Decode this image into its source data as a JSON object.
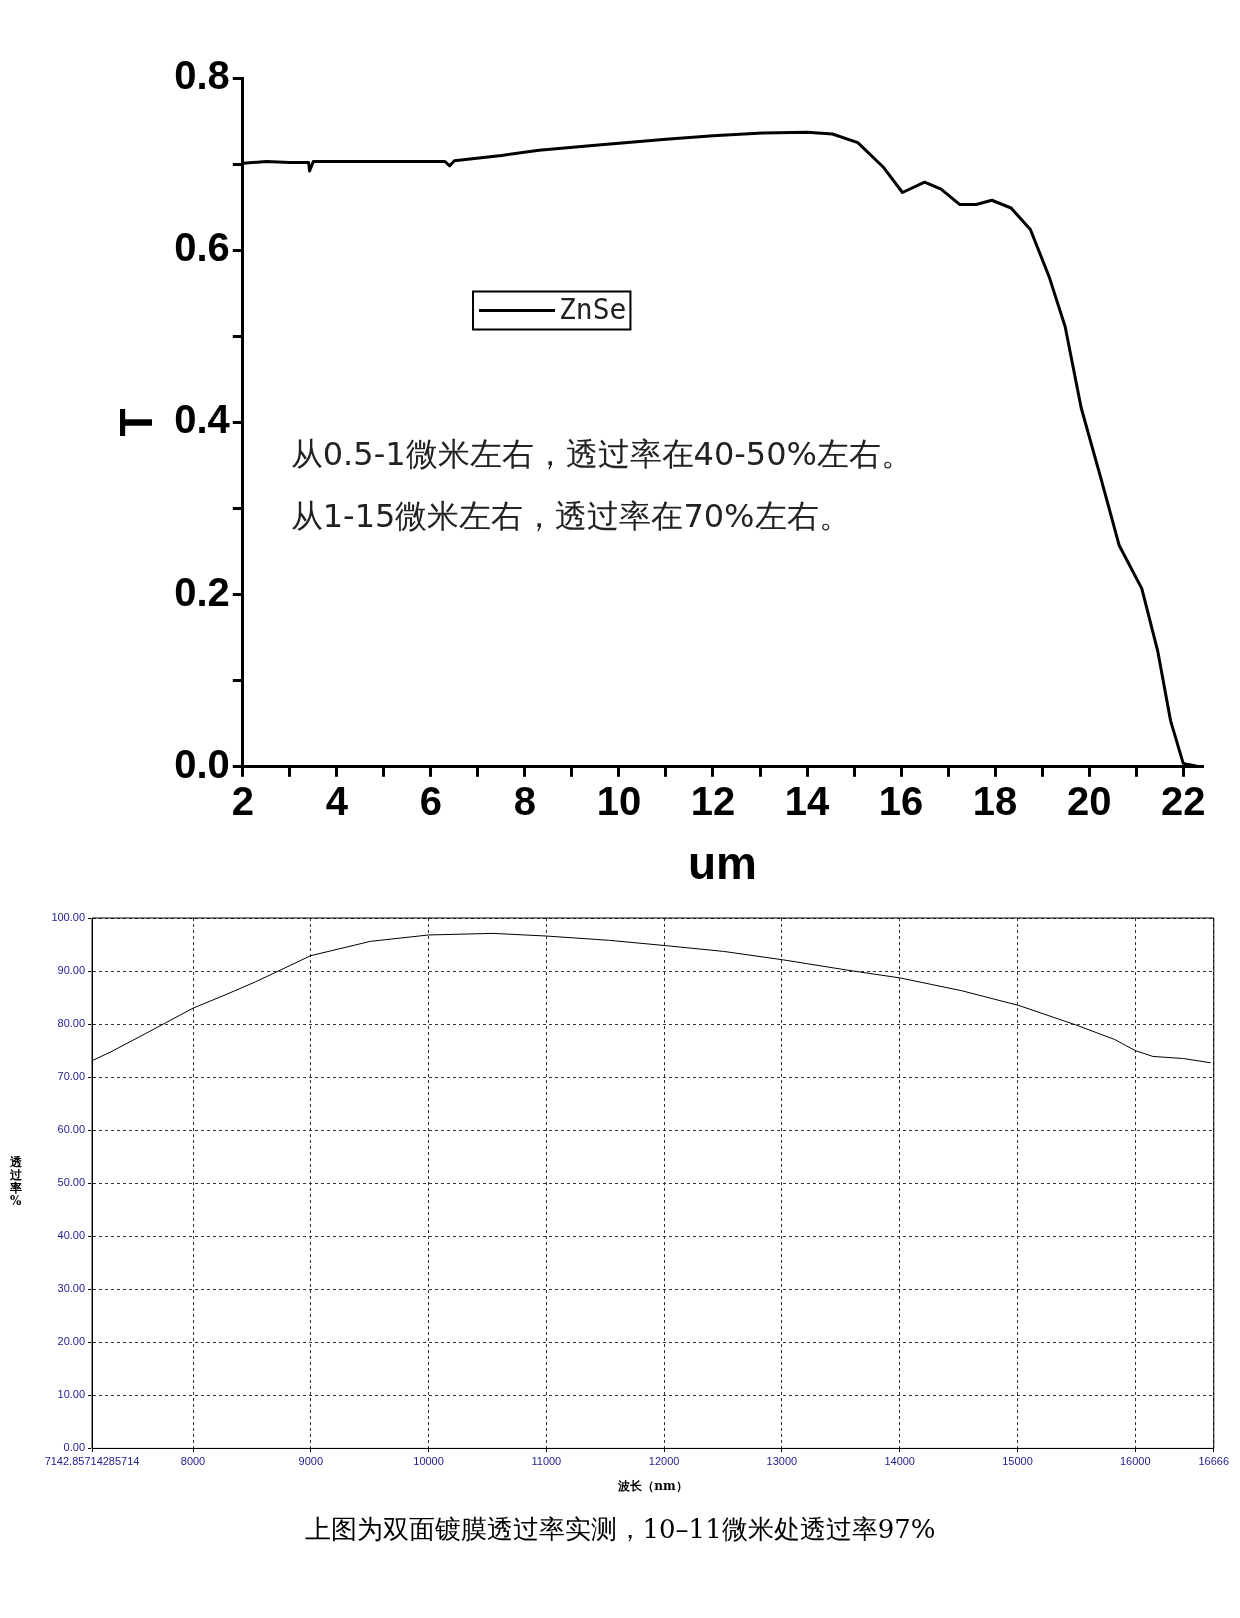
{
  "chart_data": [
    {
      "type": "line",
      "xlabel": "um",
      "ylabel": "T",
      "legend": "top left",
      "xlim": [
        2,
        22.4
      ],
      "ylim": [
        0,
        0.8
      ],
      "xticks": [
        2,
        {
          "value": 3,
          "label": null
        },
        4,
        {
          "value": 5,
          "label": null
        },
        6,
        {
          "value": 7,
          "label": null
        },
        8,
        {
          "value": 9,
          "label": null
        },
        10,
        {
          "value": 11,
          "label": null
        },
        12,
        {
          "value": 13,
          "label": null
        },
        14,
        {
          "value": 15,
          "label": null
        },
        16,
        {
          "value": 17,
          "label": null
        },
        18,
        {
          "value": 19,
          "label": null
        },
        20,
        {
          "value": 21,
          "label": null
        },
        22
      ],
      "yticks": [
        {
          "value": 0,
          "label": "0.0"
        },
        {
          "value": 0.1,
          "label": null
        },
        0.2,
        {
          "value": 0.3,
          "label": null
        },
        0.4,
        {
          "value": 0.5,
          "label": null
        },
        0.6,
        {
          "value": 0.7,
          "label": null
        },
        0.8
      ],
      "annotations": [
        "从0.5-1微米左右，透过率在40-50%左右。",
        "从1-15微米左右，透过率在70%左右。"
      ],
      "series": [
        {
          "name": "ZnSe",
          "color": "#000000",
          "x": [
            2,
            2.5,
            3.0,
            3.4,
            3.42,
            3.5,
            4.5,
            5.5,
            6.3,
            6.4,
            6.5,
            7.5,
            8.3,
            9.5,
            11.0,
            12.0,
            13.05,
            14.0,
            14.54,
            15.08,
            15.63,
            16.03,
            16.5,
            16.85,
            17.25,
            17.6,
            17.93,
            18.34,
            18.75,
            19.15,
            19.49,
            19.83,
            20.24,
            20.64,
            21.12,
            21.46,
            21.73,
            22.0,
            22.34
          ],
          "values": [
            0.701,
            0.703,
            0.702,
            0.702,
            0.692,
            0.703,
            0.703,
            0.703,
            0.703,
            0.698,
            0.704,
            0.71,
            0.716,
            0.722,
            0.729,
            0.733,
            0.736,
            0.737,
            0.735,
            0.725,
            0.696,
            0.667,
            0.679,
            0.671,
            0.653,
            0.653,
            0.658,
            0.649,
            0.624,
            0.569,
            0.511,
            0.417,
            0.337,
            0.257,
            0.207,
            0.134,
            0.054,
            0.004,
            0.0
          ]
        }
      ]
    },
    {
      "type": "line",
      "xlabel": "波长（nm）",
      "ylabel": "透过率%",
      "grid": true,
      "xlim": [
        7142.857142857143,
        16666.666666666668
      ],
      "ylim": [
        0,
        100
      ],
      "xticks": [
        {
          "value": 7142.857142857143,
          "label": "7142.85714285714"
        },
        8000,
        9000,
        10000,
        11000,
        12000,
        13000,
        14000,
        15000,
        16000,
        16666
      ],
      "yticks": [
        {
          "value": 0,
          "label": "0.00"
        },
        {
          "value": 10,
          "label": "10.00"
        },
        {
          "value": 20,
          "label": "20.00"
        },
        {
          "value": 30,
          "label": "30.00"
        },
        {
          "value": 40,
          "label": "40.00"
        },
        {
          "value": 50,
          "label": "50.00"
        },
        {
          "value": 60,
          "label": "60.00"
        },
        {
          "value": 70,
          "label": "70.00"
        },
        {
          "value": 80,
          "label": "80.00"
        },
        {
          "value": 90,
          "label": "90.00"
        },
        {
          "value": 100,
          "label": "100.00"
        }
      ],
      "annotations": [
        "上图为双面镀膜透过率实测，10–11微米处透过率97%"
      ],
      "series": [
        {
          "color": "#000000",
          "x": [
            7143,
            7297,
            7622,
            8000,
            8273,
            8534,
            9000,
            9507,
            10000,
            10547,
            11000,
            11529,
            12010,
            12505,
            13013,
            13547,
            14003,
            14524,
            15013,
            15500,
            15825,
            16000,
            16150,
            16410,
            16640
          ],
          "values": [
            73.1,
            74.7,
            78.5,
            83.0,
            85.5,
            88.0,
            92.9,
            95.6,
            96.8,
            97.1,
            96.6,
            95.8,
            94.8,
            93.7,
            92.1,
            90.2,
            88.7,
            86.3,
            83.5,
            79.8,
            77.1,
            75.0,
            73.9,
            73.5,
            72.7
          ]
        }
      ]
    }
  ]
}
